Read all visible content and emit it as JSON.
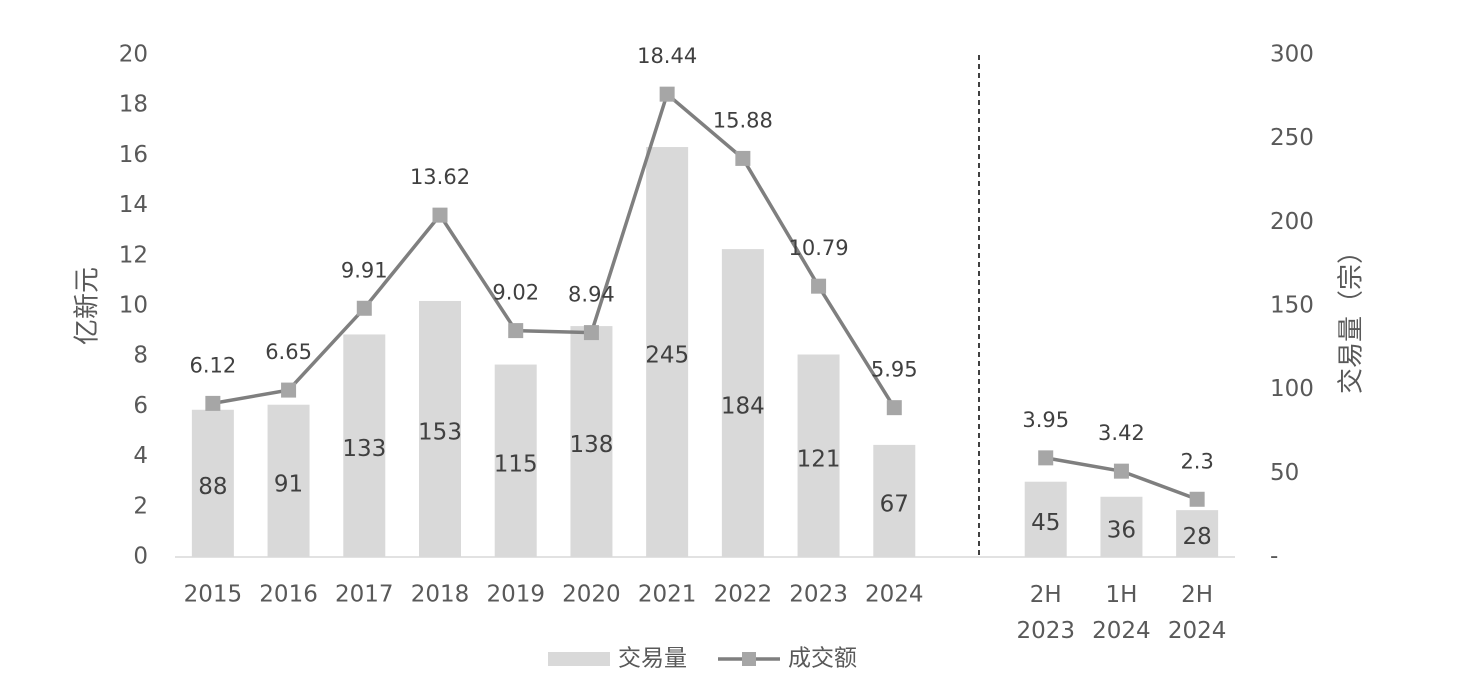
{
  "chart_data": {
    "type": "bar-line",
    "y_label": "亿新元",
    "y2_label": "交易量（宗）",
    "categories": [
      "2015",
      "2016",
      "2017",
      "2018",
      "2019",
      "2020",
      "2021",
      "2022",
      "2023",
      "2024",
      null,
      "2H 2023",
      "1H 2024",
      "2H 2024"
    ],
    "series": [
      {
        "name": "交易量",
        "type": "bar",
        "axis": "y2",
        "color": "#d9d9d9",
        "values": [
          88,
          91,
          133,
          153,
          115,
          138,
          245,
          184,
          121,
          67,
          null,
          45,
          36,
          28
        ]
      },
      {
        "name": "成交额",
        "type": "line",
        "axis": "y",
        "color": "#7f7f7f",
        "marker_color": "#a6a6a6",
        "values": [
          6.12,
          6.65,
          9.91,
          13.62,
          9.02,
          8.94,
          18.44,
          15.88,
          10.79,
          5.95,
          null,
          3.95,
          3.42,
          2.3
        ]
      }
    ],
    "ylim": [
      0,
      20
    ],
    "yticks": [
      0,
      2,
      4,
      6,
      8,
      10,
      12,
      14,
      16,
      18,
      20
    ],
    "y2lim": [
      0,
      300
    ],
    "y2ticks": [
      {
        "value": 0,
        "label": "-"
      },
      50,
      100,
      150,
      200,
      250,
      300
    ],
    "legend": "bottom",
    "grid": false
  }
}
